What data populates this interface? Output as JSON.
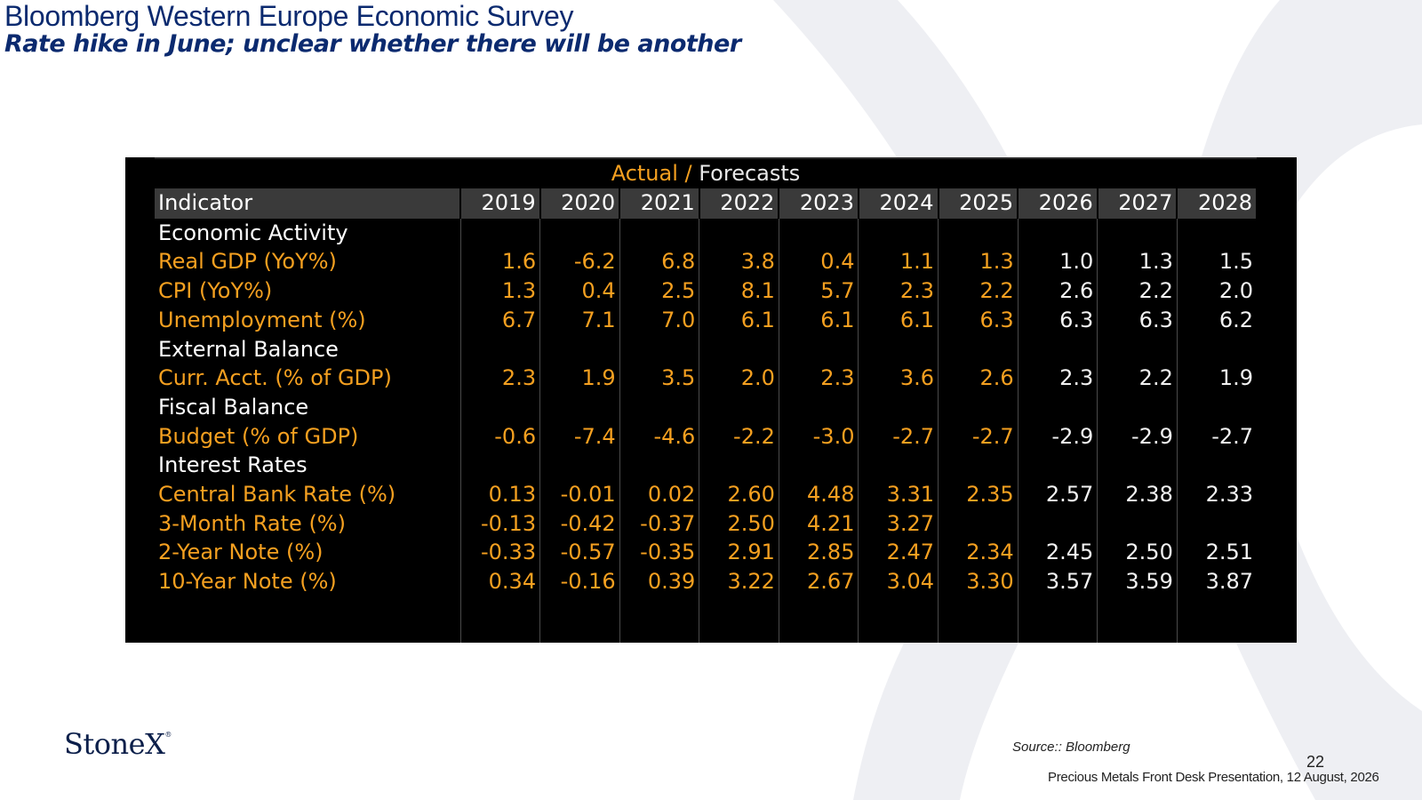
{
  "slide": {
    "title": "Bloomberg Western Europe Economic Survey",
    "subtitle": "Rate hike in June; unclear whether there will be another"
  },
  "table": {
    "super_header": {
      "actual": "Actual",
      "sep": " / ",
      "forecasts": "Forecasts"
    },
    "indicator_header": "Indicator",
    "years": [
      "2019",
      "2020",
      "2021",
      "2022",
      "2023",
      "2024",
      "2025",
      "2026",
      "2027",
      "2028"
    ],
    "actual_year_count": 7,
    "rows": [
      {
        "type": "section",
        "label": "Economic Activity"
      },
      {
        "type": "data",
        "label": "Real GDP (YoY%)",
        "values": [
          "1.6",
          "-6.2",
          "6.8",
          "3.8",
          "0.4",
          "1.1",
          "1.3",
          "1.0",
          "1.3",
          "1.5"
        ]
      },
      {
        "type": "data",
        "label": "CPI (YoY%)",
        "values": [
          "1.3",
          "0.4",
          "2.5",
          "8.1",
          "5.7",
          "2.3",
          "2.2",
          "2.6",
          "2.2",
          "2.0"
        ]
      },
      {
        "type": "data",
        "label": "Unemployment (%)",
        "values": [
          "6.7",
          "7.1",
          "7.0",
          "6.1",
          "6.1",
          "6.1",
          "6.3",
          "6.3",
          "6.3",
          "6.2"
        ]
      },
      {
        "type": "section",
        "label": "External Balance"
      },
      {
        "type": "data",
        "label": "Curr. Acct. (% of GDP)",
        "values": [
          "2.3",
          "1.9",
          "3.5",
          "2.0",
          "2.3",
          "3.6",
          "2.6",
          "2.3",
          "2.2",
          "1.9"
        ]
      },
      {
        "type": "section",
        "label": "Fiscal Balance"
      },
      {
        "type": "data",
        "label": "Budget (% of GDP)",
        "values": [
          "-0.6",
          "-7.4",
          "-4.6",
          "-2.2",
          "-3.0",
          "-2.7",
          "-2.7",
          "-2.9",
          "-2.9",
          "-2.7"
        ]
      },
      {
        "type": "section",
        "label": "Interest Rates"
      },
      {
        "type": "data",
        "label": "Central Bank Rate (%)",
        "values": [
          "0.13",
          "-0.01",
          "0.02",
          "2.60",
          "4.48",
          "3.31",
          "2.35",
          "2.57",
          "2.38",
          "2.33"
        ]
      },
      {
        "type": "data",
        "label": "3-Month Rate (%)",
        "values": [
          "-0.13",
          "-0.42",
          "-0.37",
          "2.50",
          "4.21",
          "3.27",
          "",
          "",
          "",
          ""
        ]
      },
      {
        "type": "data",
        "label": "2-Year Note (%)",
        "values": [
          "-0.33",
          "-0.57",
          "-0.35",
          "2.91",
          "2.85",
          "2.47",
          "2.34",
          "2.45",
          "2.50",
          "2.51"
        ]
      },
      {
        "type": "data",
        "label": "10-Year Note (%)",
        "values": [
          "0.34",
          "-0.16",
          "0.39",
          "3.22",
          "2.67",
          "3.04",
          "3.30",
          "3.57",
          "3.59",
          "3.87"
        ]
      }
    ]
  },
  "colors": {
    "title": "#0b2a6f",
    "actual": "#f5a020",
    "forecast": "#f2f2f2",
    "panel_bg": "#000000",
    "header_bg": "#3a3a3a"
  },
  "footer": {
    "logo": "StoneX",
    "logo_mark": "®",
    "source": "Source:: Bloomberg",
    "page_number": "22",
    "presentation": "Precious Metals Front Desk Presentation, 12 August, 2026"
  }
}
